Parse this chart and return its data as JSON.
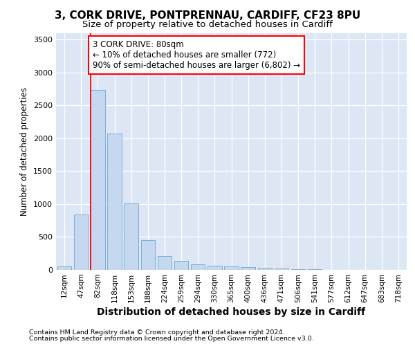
{
  "title1": "3, CORK DRIVE, PONTPRENNAU, CARDIFF, CF23 8PU",
  "title2": "Size of property relative to detached houses in Cardiff",
  "xlabel": "Distribution of detached houses by size in Cardiff",
  "ylabel": "Number of detached properties",
  "categories": [
    "12sqm",
    "47sqm",
    "82sqm",
    "118sqm",
    "153sqm",
    "188sqm",
    "224sqm",
    "259sqm",
    "294sqm",
    "330sqm",
    "365sqm",
    "400sqm",
    "436sqm",
    "471sqm",
    "506sqm",
    "541sqm",
    "577sqm",
    "612sqm",
    "647sqm",
    "683sqm",
    "718sqm"
  ],
  "values": [
    55,
    845,
    2730,
    2070,
    1010,
    455,
    210,
    140,
    80,
    65,
    55,
    45,
    35,
    20,
    10,
    6,
    4,
    3,
    2,
    2,
    1
  ],
  "bar_color": "#c5d8f0",
  "bar_edge_color": "#7aadd4",
  "red_line_index": 2,
  "annotation_line1": "3 CORK DRIVE: 80sqm",
  "annotation_line2": "← 10% of detached houses are smaller (772)",
  "annotation_line3": "90% of semi-detached houses are larger (6,802) →",
  "ylim_max": 3600,
  "yticks": [
    0,
    500,
    1000,
    1500,
    2000,
    2500,
    3000,
    3500
  ],
  "fig_bg_color": "#ffffff",
  "plot_bg_color": "#dce6f5",
  "grid_color": "#ffffff",
  "footnote1": "Contains HM Land Registry data © Crown copyright and database right 2024.",
  "footnote2": "Contains public sector information licensed under the Open Government Licence v3.0."
}
